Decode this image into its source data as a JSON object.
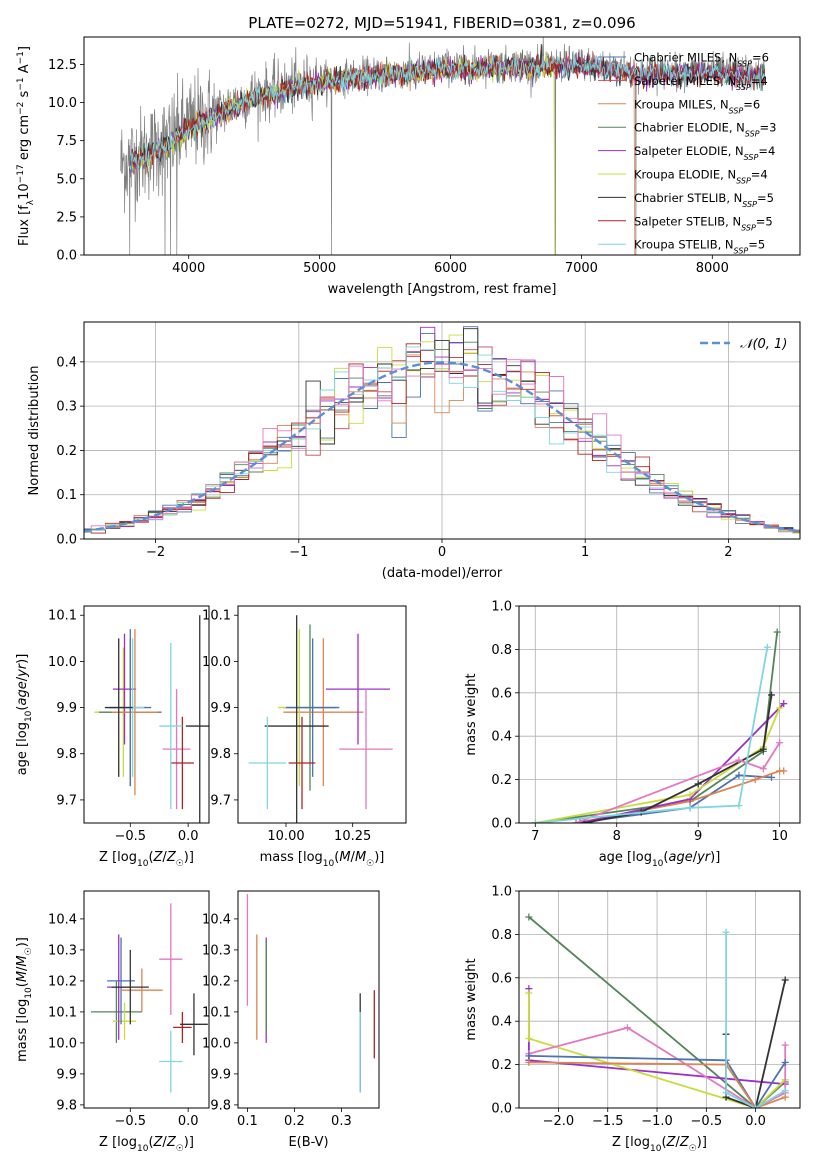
{
  "chart_data": [
    {
      "id": "spectrum",
      "type": "line",
      "title": "PLATE=0272, MJD=51941, FIBERID=0381, z=0.096",
      "xlabel": "wavelength [Angstrom, rest frame]",
      "ylabel": "Flux [fλ10⁻¹⁷ erg cm⁻² s⁻¹ A⁻¹]",
      "xlim": [
        3200,
        8670
      ],
      "ylim": [
        0,
        14.3
      ],
      "xticks": [
        4000,
        5000,
        6000,
        7000,
        8000
      ],
      "yticks": [
        0.0,
        2.5,
        5.0,
        7.5,
        10.0,
        12.5
      ],
      "grid": false,
      "legend_position": "right",
      "series": [
        {
          "name": "Chabrier MILES, N_SSP=6",
          "color": "#4c72b0"
        },
        {
          "name": "Salpeter MILES, N_SSP=4",
          "color": "#c44e52"
        },
        {
          "name": "Kroupa MILES, N_SSP=6",
          "color": "#dd8452"
        },
        {
          "name": "Chabrier ELODIE, N_SSP=3",
          "color": "#55855a"
        },
        {
          "name": "Salpeter ELODIE, N_SSP=4",
          "color": "#9b30c8"
        },
        {
          "name": "Kroupa ELODIE, N_SSP=4",
          "color": "#c8dc3c"
        },
        {
          "name": "Chabrier STELIB, N_SSP=5",
          "color": "#333333"
        },
        {
          "name": "Salpeter STELIB, N_SSP=5",
          "color": "#b22222"
        },
        {
          "name": "Kroupa STELIB, N_SSP=5",
          "color": "#7fd6e0"
        }
      ],
      "data_color": "#808080",
      "continuum": {
        "x": [
          3500,
          3800,
          4000,
          4500,
          5000,
          6000,
          7000,
          7500,
          8000,
          8400
        ],
        "y": [
          6.0,
          7.2,
          8.5,
          10.5,
          11.5,
          12.4,
          12.6,
          12.0,
          12.1,
          11.8
        ]
      },
      "dropouts": [
        3550,
        3820,
        3860,
        3910,
        5090,
        6800,
        7415
      ]
    },
    {
      "id": "residuals",
      "type": "histogram",
      "xlabel": "(data-model)/error",
      "ylabel": "Normed distribution",
      "xlim": [
        -2.5,
        2.5
      ],
      "ylim": [
        0,
        0.49
      ],
      "xticks": [
        -2,
        -1,
        0,
        1,
        2
      ],
      "yticks": [
        0.0,
        0.1,
        0.2,
        0.3,
        0.4
      ],
      "grid": true,
      "legend": "𝒩(0, 1)",
      "legend_position": "top-right",
      "reference_curve": "gaussian mean 0 sigma 1",
      "bin_width": 0.1
    },
    {
      "id": "age-vs-Z",
      "type": "errorbar",
      "xlabel": "Z [log10(Z/Z☉)]",
      "ylabel": "age  [log10(age/yr)]",
      "xlim": [
        -0.9,
        0.18
      ],
      "ylim": [
        9.65,
        10.12
      ],
      "xticks": [
        -0.5,
        0.0
      ],
      "yticks": [
        9.7,
        9.8,
        9.9,
        10.0,
        10.1
      ],
      "grid": false,
      "points": [
        {
          "x": -0.56,
          "y": 9.89,
          "xerr": 0.25,
          "yerr": 0.14,
          "color": "#c8dc3c"
        },
        {
          "x": -0.5,
          "y": 9.89,
          "xerr": 0.27,
          "yerr": 0.16,
          "color": "#55855a"
        },
        {
          "x": -0.55,
          "y": 9.94,
          "xerr": 0.1,
          "yerr": 0.12,
          "color": "#9b30c8"
        },
        {
          "x": -0.46,
          "y": 9.89,
          "xerr": 0.2,
          "yerr": 0.18,
          "color": "#dd8452"
        },
        {
          "x": -0.5,
          "y": 9.9,
          "xerr": 0.18,
          "yerr": 0.17,
          "color": "#4c72b0"
        },
        {
          "x": -0.48,
          "y": 9.9,
          "xerr": 0.1,
          "yerr": 0.15,
          "color": "#7fd6e0"
        },
        {
          "x": -0.6,
          "y": 9.9,
          "xerr": 0.12,
          "yerr": 0.15,
          "color": "#333333"
        },
        {
          "x": -0.1,
          "y": 9.81,
          "xerr": 0.12,
          "yerr": 0.13,
          "color": "#e377c2"
        },
        {
          "x": 0.1,
          "y": 9.86,
          "xerr": 0.12,
          "yerr": 0.24,
          "color": "#333333"
        },
        {
          "x": -0.05,
          "y": 9.78,
          "xerr": 0.1,
          "yerr": 0.1,
          "color": "#b22222"
        },
        {
          "x": -0.15,
          "y": 9.86,
          "xerr": 0.1,
          "yerr": 0.18,
          "color": "#7fd6e0"
        }
      ]
    },
    {
      "id": "age-vs-mass",
      "type": "errorbar",
      "xlabel": "mass [log10(M/M☉)]",
      "ylabel": "",
      "xlim": [
        9.82,
        10.45
      ],
      "ylim": [
        9.65,
        10.12
      ],
      "xticks": [
        10.0,
        10.25
      ],
      "yticks": [
        9.7,
        9.8,
        9.9,
        10.0,
        10.1
      ],
      "grid": false,
      "points": [
        {
          "x": 10.09,
          "y": 9.9,
          "xerr": 0.1,
          "yerr": 0.18,
          "color": "#55855a"
        },
        {
          "x": 10.14,
          "y": 9.89,
          "xerr": 0.15,
          "yerr": 0.16,
          "color": "#dd8452"
        },
        {
          "x": 10.27,
          "y": 9.94,
          "xerr": 0.12,
          "yerr": 0.12,
          "color": "#9b30c8"
        },
        {
          "x": 10.05,
          "y": 9.9,
          "xerr": 0.08,
          "yerr": 0.17,
          "color": "#c8dc3c"
        },
        {
          "x": 10.1,
          "y": 9.9,
          "xerr": 0.1,
          "yerr": 0.15,
          "color": "#4c72b0"
        },
        {
          "x": 10.04,
          "y": 9.86,
          "xerr": 0.12,
          "yerr": 0.24,
          "color": "#333333"
        },
        {
          "x": 10.06,
          "y": 9.78,
          "xerr": 0.05,
          "yerr": 0.1,
          "color": "#b22222"
        },
        {
          "x": 10.3,
          "y": 9.81,
          "xerr": 0.1,
          "yerr": 0.13,
          "color": "#e377c2"
        },
        {
          "x": 9.93,
          "y": 9.78,
          "xerr": 0.07,
          "yerr": 0.1,
          "color": "#7fd6e0"
        }
      ]
    },
    {
      "id": "massweight-vs-age",
      "type": "line",
      "xlabel": "age  [log10(age/yr)]",
      "ylabel": "mass weight",
      "xlim": [
        6.8,
        10.25
      ],
      "ylim": [
        0,
        1
      ],
      "xticks": [
        7,
        8,
        9,
        10
      ],
      "yticks": [
        0.0,
        0.2,
        0.4,
        0.6,
        0.8,
        1.0
      ],
      "grid": true,
      "series": [
        {
          "color": "#55855a",
          "x": [
            7.0,
            8.9,
            9.8,
            9.97
          ],
          "y": [
            0.0,
            0.1,
            0.33,
            0.88
          ]
        },
        {
          "color": "#4c72b0",
          "x": [
            7.5,
            8.9,
            9.5,
            9.9
          ],
          "y": [
            0.0,
            0.07,
            0.22,
            0.21
          ]
        },
        {
          "color": "#dd8452",
          "x": [
            7.5,
            8.9,
            9.7,
            10.0,
            10.05
          ],
          "y": [
            0.0,
            0.1,
            0.2,
            0.24,
            0.24
          ]
        },
        {
          "color": "#9b30c8",
          "x": [
            7.55,
            8.9,
            10.05
          ],
          "y": [
            0.0,
            0.11,
            0.55
          ]
        },
        {
          "color": "#c8dc3c",
          "x": [
            7.0,
            8.9,
            9.8,
            10.0
          ],
          "y": [
            0.0,
            0.13,
            0.35,
            0.53
          ]
        },
        {
          "color": "#333333",
          "x": [
            7.6,
            8.3,
            9.0,
            9.8,
            9.9
          ],
          "y": [
            0.0,
            0.05,
            0.18,
            0.34,
            0.59
          ]
        },
        {
          "color": "#e377c2",
          "x": [
            7.5,
            9.5,
            9.8,
            10.0
          ],
          "y": [
            0.0,
            0.29,
            0.25,
            0.37
          ]
        },
        {
          "color": "#7fd6e0",
          "x": [
            7.0,
            8.9,
            9.5,
            9.85
          ],
          "y": [
            0.0,
            0.07,
            0.08,
            0.81
          ]
        }
      ]
    },
    {
      "id": "mass-vs-Z",
      "type": "errorbar",
      "xlabel": "Z [log10(Z/Z☉)]",
      "ylabel": "mass [log10(M/M☉)]",
      "xlim": [
        -0.9,
        0.18
      ],
      "ylim": [
        9.79,
        10.49
      ],
      "xticks": [
        -0.5,
        0.0
      ],
      "yticks": [
        9.8,
        9.9,
        10.0,
        10.1,
        10.2,
        10.3,
        10.4
      ],
      "grid": false,
      "points": [
        {
          "x": -0.62,
          "y": 10.1,
          "xerr": 0.22,
          "yerr": 0.1,
          "color": "#55855a"
        },
        {
          "x": -0.55,
          "y": 10.07,
          "xerr": 0.1,
          "yerr": 0.06,
          "color": "#c8dc3c"
        },
        {
          "x": -0.58,
          "y": 10.2,
          "xerr": 0.12,
          "yerr": 0.14,
          "color": "#4c72b0"
        },
        {
          "x": -0.6,
          "y": 10.18,
          "xerr": 0.1,
          "yerr": 0.17,
          "color": "#9b30c8"
        },
        {
          "x": -0.4,
          "y": 10.17,
          "xerr": 0.18,
          "yerr": 0.07,
          "color": "#dd8452"
        },
        {
          "x": -0.5,
          "y": 10.18,
          "xerr": 0.16,
          "yerr": 0.12,
          "color": "#333333"
        },
        {
          "x": -0.15,
          "y": 10.27,
          "xerr": 0.1,
          "yerr": 0.18,
          "color": "#e377c2"
        },
        {
          "x": -0.05,
          "y": 10.05,
          "xerr": 0.08,
          "yerr": 0.05,
          "color": "#b22222"
        },
        {
          "x": 0.05,
          "y": 10.06,
          "xerr": 0.12,
          "yerr": 0.1,
          "color": "#333333"
        },
        {
          "x": -0.15,
          "y": 9.94,
          "xerr": 0.1,
          "yerr": 0.1,
          "color": "#7fd6e0"
        }
      ]
    },
    {
      "id": "mass-vs-EBV",
      "type": "errorbar",
      "xlabel": "E(B-V)",
      "ylabel": "",
      "xlim": [
        0.08,
        0.38
      ],
      "ylim": [
        9.79,
        10.49
      ],
      "xticks": [
        0.1,
        0.2,
        0.3
      ],
      "yticks": [
        9.8,
        9.9,
        10.0,
        10.1,
        10.2,
        10.3,
        10.4
      ],
      "grid": false,
      "points": [
        {
          "x": 0.1,
          "y": 10.3,
          "xerr": 0,
          "yerr": 0.18,
          "color": "#e377c2"
        },
        {
          "x": 0.12,
          "y": 10.18,
          "xerr": 0,
          "yerr": 0.17,
          "color": "#dd8452"
        },
        {
          "x": 0.14,
          "y": 10.17,
          "xerr": 0,
          "yerr": 0.17,
          "color": "#9b30c8"
        },
        {
          "x": 0.14,
          "y": 10.18,
          "xerr": 0,
          "yerr": 0.15,
          "color": "#55855a"
        },
        {
          "x": 0.34,
          "y": 10.0,
          "xerr": 0,
          "yerr": 0.16,
          "color": "#333333"
        },
        {
          "x": 0.34,
          "y": 9.97,
          "xerr": 0,
          "yerr": 0.13,
          "color": "#7fd6e0"
        },
        {
          "x": 0.37,
          "y": 10.06,
          "xerr": 0,
          "yerr": 0.11,
          "color": "#b22222"
        }
      ]
    },
    {
      "id": "massweight-vs-Z",
      "type": "line",
      "xlabel": "Z [log10(Z/Z☉)]",
      "ylabel": "mass weight",
      "xlim": [
        -2.4,
        0.45
      ],
      "ylim": [
        0,
        1
      ],
      "xticks": [
        -2.0,
        -1.5,
        -1.0,
        -0.5,
        0.0
      ],
      "yticks": [
        0.0,
        0.2,
        0.4,
        0.6,
        0.8,
        1.0
      ],
      "grid": true,
      "series": [
        {
          "color": "#55855a",
          "x": [
            -2.3,
            0.0,
            0.3
          ],
          "y": [
            0.88,
            0.0,
            0.12
          ]
        },
        {
          "color": "#9b30c8",
          "x": [
            -2.3,
            -2.3,
            0.3
          ],
          "y": [
            0.55,
            0.22,
            0.11
          ]
        },
        {
          "color": "#c8dc3c",
          "x": [
            -2.3,
            -2.3,
            0.0,
            0.3
          ],
          "y": [
            0.53,
            0.32,
            0.0,
            0.13
          ]
        },
        {
          "color": "#e377c2",
          "x": [
            -2.3,
            -1.3,
            0.0,
            0.3,
            0.3
          ],
          "y": [
            0.25,
            0.37,
            0.0,
            0.07,
            0.29
          ]
        },
        {
          "color": "#4c72b0",
          "x": [
            -2.3,
            -0.3,
            0.0,
            0.3
          ],
          "y": [
            0.24,
            0.22,
            0.0,
            0.21
          ]
        },
        {
          "color": "#dd8452",
          "x": [
            -2.3,
            -0.3,
            0.0,
            0.3
          ],
          "y": [
            0.21,
            0.2,
            0.0,
            0.05
          ]
        },
        {
          "color": "#333333",
          "x": [
            -0.3,
            -0.3,
            0.0,
            0.3
          ],
          "y": [
            0.34,
            0.05,
            0.0,
            0.59
          ]
        },
        {
          "color": "#7fd6e0",
          "x": [
            -0.3,
            -0.3,
            0.0,
            0.3
          ],
          "y": [
            0.81,
            0.07,
            0.0,
            0.08
          ]
        }
      ]
    }
  ]
}
